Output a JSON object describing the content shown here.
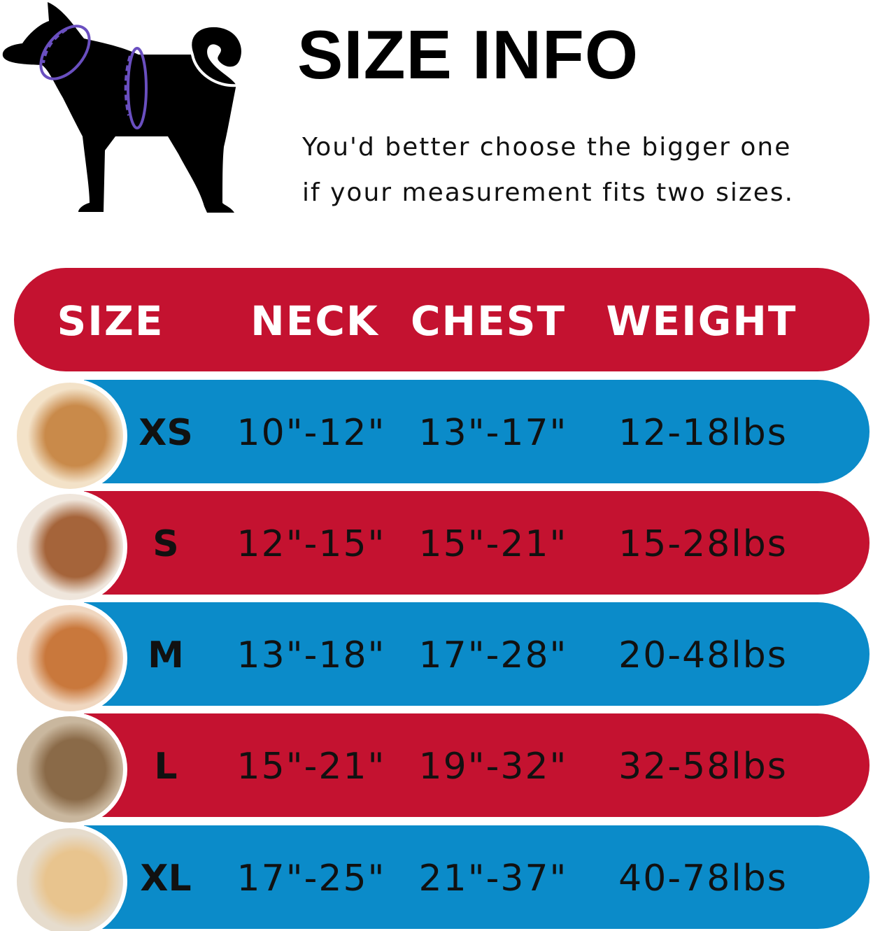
{
  "title": "SIZE INFO",
  "subtitle_lines": [
    "You'd better choose the bigger one",
    "if your measurement fits two sizes."
  ],
  "colors": {
    "red": "#c41230",
    "blue": "#0b8bc9",
    "measure_ring": "#6a4fc0"
  },
  "illustration": "dog-silhouette-with-neck-and-chest-measurement-rings",
  "table": {
    "headers": [
      "SIZE",
      "NECK",
      "CHEST",
      "WEIGHT"
    ],
    "rows": [
      {
        "size": "XS",
        "neck": "10\"-12\"",
        "chest": "13\"-17\"",
        "weight": "12-18lbs",
        "color": "#0b8bc9",
        "photo": "pomeranian-photo"
      },
      {
        "size": "S",
        "neck": "12\"-15\"",
        "chest": "15\"-21\"",
        "weight": "15-28lbs",
        "color": "#c41230",
        "photo": "poodle-photo"
      },
      {
        "size": "M",
        "neck": "13\"-18\"",
        "chest": "17\"-28\"",
        "weight": "20-48lbs",
        "color": "#0b8bc9",
        "photo": "shiba-inu-photo"
      },
      {
        "size": "L",
        "neck": "15\"-21\"",
        "chest": "19\"-32\"",
        "weight": "32-58lbs",
        "color": "#c41230",
        "photo": "french-bulldog-photo"
      },
      {
        "size": "XL",
        "neck": "17\"-25\"",
        "chest": "21\"-37\"",
        "weight": "40-78lbs",
        "color": "#0b8bc9",
        "photo": "labrador-photo"
      }
    ]
  }
}
